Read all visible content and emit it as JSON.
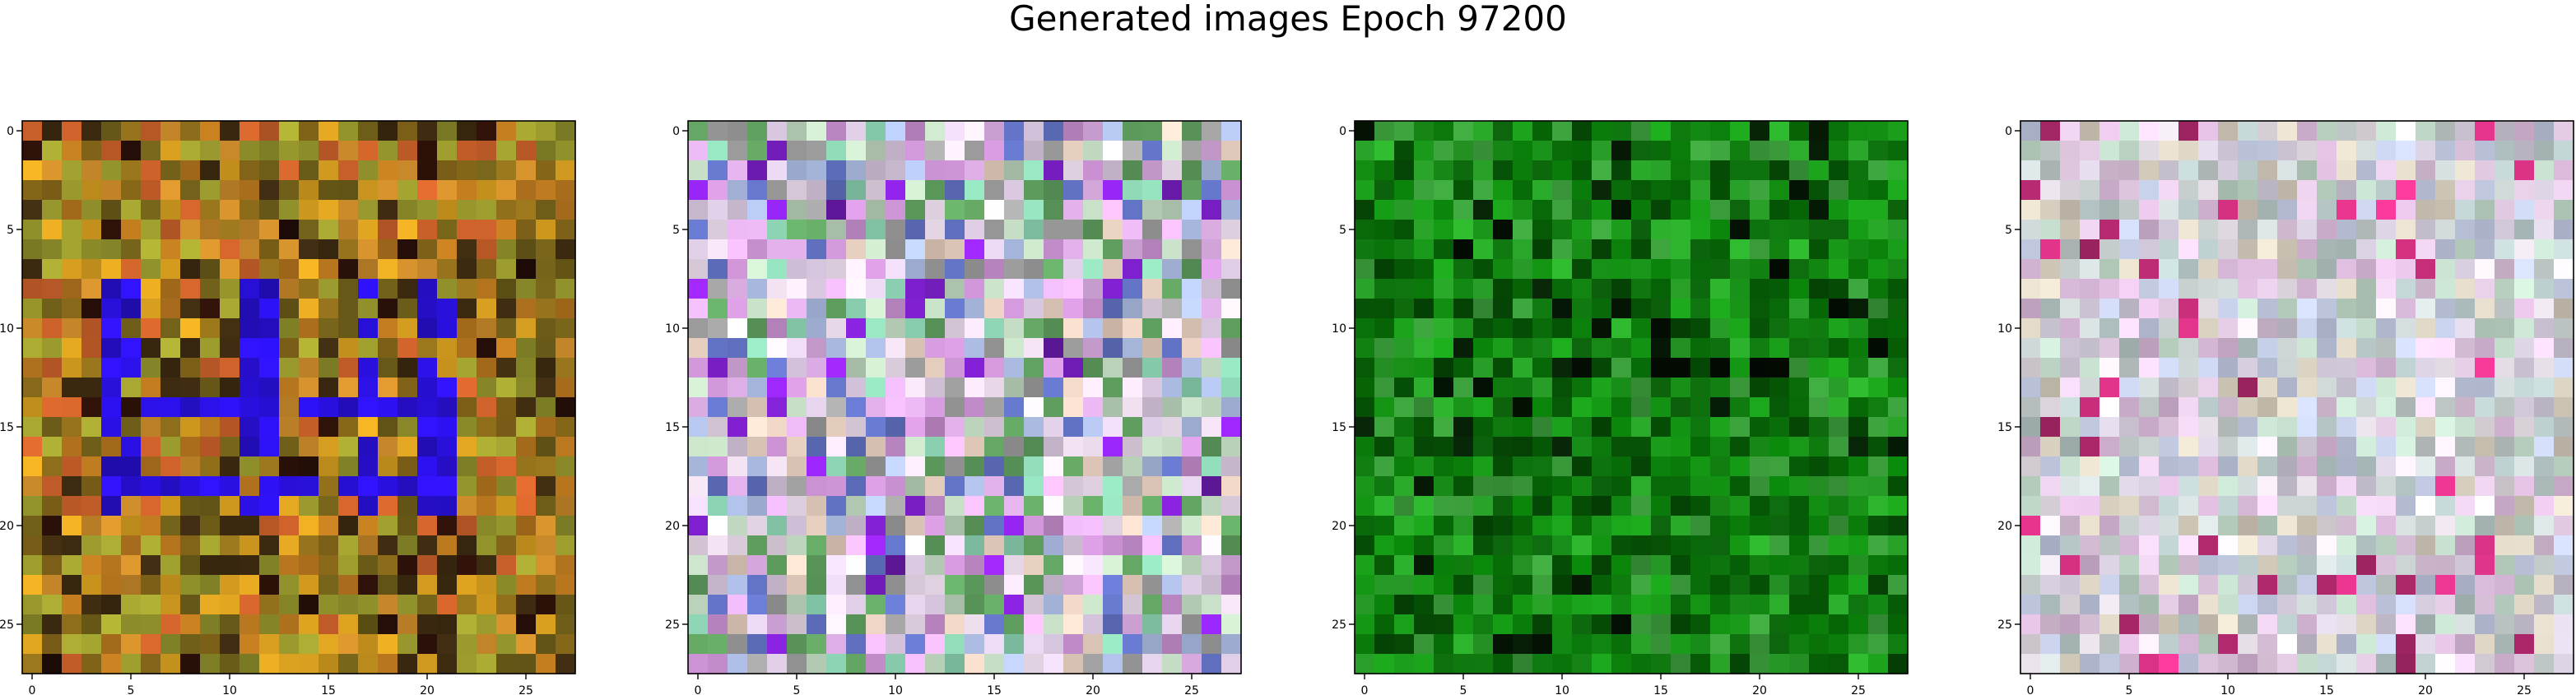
{
  "title": "Generated images Epoch 97200",
  "chart_data": {
    "type": "heatmap",
    "title": "Generated images Epoch 97200",
    "panels": [
      {
        "grid_size": [
          28,
          28
        ],
        "xticks": [
          0,
          5,
          10,
          15,
          20,
          25
        ],
        "yticks": [
          0,
          5,
          10,
          15,
          20,
          25
        ],
        "xlim": [
          -0.5,
          27.5
        ],
        "ylim": [
          27.5,
          -0.5
        ],
        "palette": [
          "#c8892a",
          "#b5751e",
          "#8a6a1a",
          "#a0a030",
          "#d9a020",
          "#6a5a18",
          "#c9602a",
          "#8c8c2a",
          "#3c2a10"
        ],
        "feature_color": "#2a10e0",
        "feature_name": "blue-strokes"
      },
      {
        "grid_size": [
          28,
          28
        ],
        "xticks": [
          0,
          5,
          10,
          15,
          20,
          25
        ],
        "yticks": [
          0,
          5,
          10,
          15,
          20,
          25
        ],
        "xlim": [
          -0.5,
          27.5
        ],
        "ylim": [
          27.5,
          -0.5
        ],
        "palette": [
          "#d9c8e0",
          "#c0d8c0",
          "#e0b0e8",
          "#b0c0e8",
          "#8ad0b0",
          "#e8d0c0",
          "#c890d0",
          "#a0a0a0",
          "#f0e0f0",
          "#6070c0",
          "#60a060"
        ],
        "feature_color": "#8020d0",
        "feature_name": "purple-accents"
      },
      {
        "grid_size": [
          28,
          28
        ],
        "xticks": [
          0,
          5,
          10,
          15,
          20,
          25
        ],
        "yticks": [
          0,
          5,
          10,
          15,
          20,
          25
        ],
        "xlim": [
          -0.5,
          27.5
        ],
        "ylim": [
          27.5,
          -0.5
        ],
        "palette": [
          "#0a7a0a",
          "#128a12",
          "#066006",
          "#1a9a1a",
          "#0e700e",
          "#2aa62a",
          "#054805",
          "#3a9a3a"
        ],
        "feature_color": "#020a02",
        "feature_name": "dark-strokes"
      },
      {
        "grid_size": [
          28,
          28
        ],
        "xticks": [
          0,
          5,
          10,
          15,
          20,
          25
        ],
        "yticks": [
          0,
          5,
          10,
          15,
          20,
          25
        ],
        "xlim": [
          -0.5,
          27.5
        ],
        "ylim": [
          27.5,
          -0.5
        ],
        "palette": [
          "#d0c8d8",
          "#c8d0d0",
          "#e0c8e0",
          "#d8d0c0",
          "#c0c8e0",
          "#e8e0e8",
          "#b8c8c8",
          "#d8b8d8",
          "#c0d8c8"
        ],
        "feature_color": "#d03080",
        "feature_name": "magenta-accents"
      }
    ]
  }
}
